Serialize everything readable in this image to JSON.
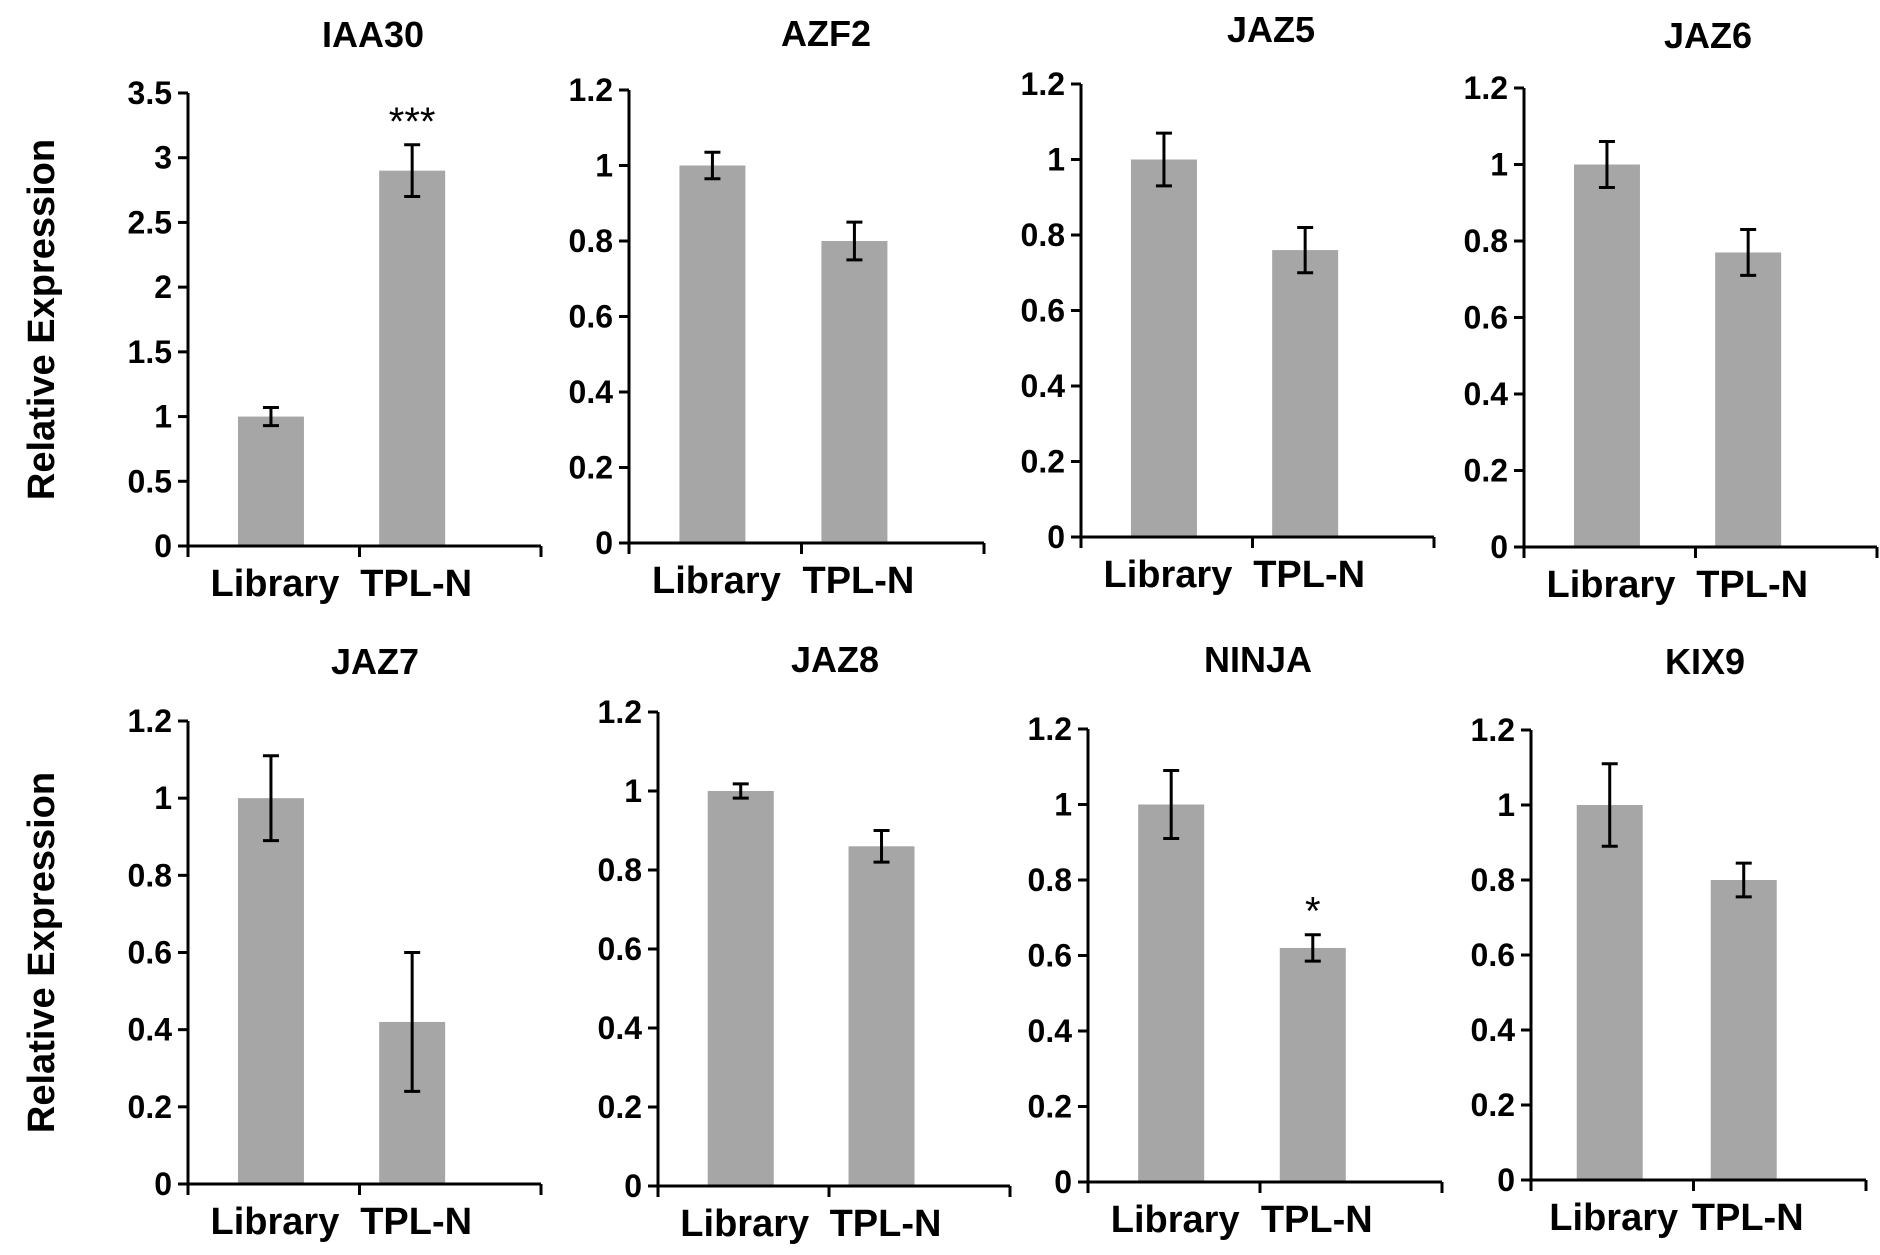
{
  "figure": {
    "bar_color": "#a6a6a6",
    "axis_color": "#000000"
  },
  "chart_data": [
    {
      "type": "bar",
      "title": "IAA30",
      "ylabel": "Relative Expression",
      "categories": [
        "Library",
        "TPL-N"
      ],
      "values": [
        1.0,
        2.9
      ],
      "errors": [
        0.07,
        0.2
      ],
      "significance": [
        "",
        "***"
      ],
      "ylim": [
        0,
        3.5
      ],
      "yticks": [
        "0",
        "0.5",
        "1",
        "1.5",
        "2",
        "2.5",
        "3",
        "3.5"
      ]
    },
    {
      "type": "bar",
      "title": "AZF2",
      "ylabel": "",
      "categories": [
        "Library",
        "TPL-N"
      ],
      "values": [
        1.0,
        0.8
      ],
      "errors": [
        0.035,
        0.05
      ],
      "significance": [
        "",
        ""
      ],
      "ylim": [
        0,
        1.2
      ],
      "yticks": [
        "0",
        "0.2",
        "0.4",
        "0.6",
        "0.8",
        "1",
        "1.2"
      ]
    },
    {
      "type": "bar",
      "title": "JAZ5",
      "ylabel": "",
      "categories": [
        "Library",
        "TPL-N"
      ],
      "values": [
        1.0,
        0.76
      ],
      "errors": [
        0.07,
        0.06
      ],
      "significance": [
        "",
        ""
      ],
      "ylim": [
        0,
        1.2
      ],
      "yticks": [
        "0",
        "0.2",
        "0.4",
        "0.6",
        "0.8",
        "1",
        "1.2"
      ]
    },
    {
      "type": "bar",
      "title": "JAZ6",
      "ylabel": "",
      "categories": [
        "Library",
        "TPL-N"
      ],
      "values": [
        1.0,
        0.77
      ],
      "errors": [
        0.06,
        0.06
      ],
      "significance": [
        "",
        ""
      ],
      "ylim": [
        0,
        1.2
      ],
      "yticks": [
        "0",
        "0.2",
        "0.4",
        "0.6",
        "0.8",
        "1",
        "1.2"
      ]
    },
    {
      "type": "bar",
      "title": "JAZ7",
      "ylabel": "Relative Expression",
      "categories": [
        "Library",
        "TPL-N"
      ],
      "values": [
        1.0,
        0.42
      ],
      "errors": [
        0.11,
        0.18
      ],
      "significance": [
        "",
        ""
      ],
      "ylim": [
        0,
        1.2
      ],
      "yticks": [
        "0",
        "0.2",
        "0.4",
        "0.6",
        "0.8",
        "1",
        "1.2"
      ]
    },
    {
      "type": "bar",
      "title": "JAZ8",
      "ylabel": "",
      "categories": [
        "Library",
        "TPL-N"
      ],
      "values": [
        1.0,
        0.86
      ],
      "errors": [
        0.018,
        0.04
      ],
      "significance": [
        "",
        ""
      ],
      "ylim": [
        0,
        1.2
      ],
      "yticks": [
        "0",
        "0.2",
        "0.4",
        "0.6",
        "0.8",
        "1",
        "1.2"
      ]
    },
    {
      "type": "bar",
      "title": "NINJA",
      "ylabel": "",
      "categories": [
        "Library",
        "TPL-N"
      ],
      "values": [
        1.0,
        0.62
      ],
      "errors": [
        0.09,
        0.035
      ],
      "significance": [
        "",
        "*"
      ],
      "ylim": [
        0,
        1.2
      ],
      "yticks": [
        "0",
        "0.2",
        "0.4",
        "0.6",
        "0.8",
        "1",
        "1.2"
      ]
    },
    {
      "type": "bar",
      "title": "KIX9",
      "ylabel": "",
      "categories": [
        "Library",
        "TPL-N"
      ],
      "values": [
        1.0,
        0.8
      ],
      "errors": [
        0.11,
        0.045
      ],
      "significance": [
        "",
        ""
      ],
      "ylim": [
        0,
        1.2
      ],
      "yticks": [
        "0",
        "0.2",
        "0.4",
        "0.6",
        "0.8",
        "1",
        "1.2"
      ]
    }
  ]
}
